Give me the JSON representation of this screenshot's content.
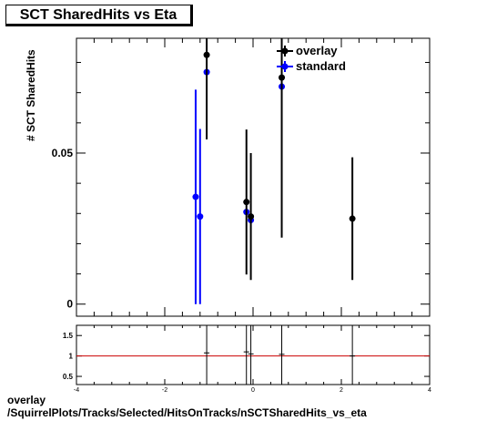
{
  "title": "SCT SharedHits vs Eta",
  "footer": {
    "line1": "overlay",
    "line2": "/SquirrelPlots/Tracks/Selected/HitsOnTracks/nSCTSharedHits_vs_eta"
  },
  "chart_data": [
    {
      "type": "scatter",
      "title": "SCT SharedHits vs Eta",
      "ylabel": "# SCT SharedHits",
      "xlim": [
        -4,
        4
      ],
      "ylim": [
        -0.004,
        0.088
      ],
      "xticks": [
        -4,
        -2,
        0,
        2,
        4
      ],
      "yticks": [
        0,
        0.05
      ],
      "ytick_labels": [
        "0",
        "0.05"
      ],
      "legend": {
        "placement": "top-right",
        "entries": [
          "overlay",
          "standard"
        ]
      },
      "grid": false,
      "series": [
        {
          "name": "overlay",
          "color": "#000000",
          "points": [
            {
              "x": -1.05,
              "y": 0.0825,
              "err": 0.028
            },
            {
              "x": -0.15,
              "y": 0.0338,
              "err": 0.024
            },
            {
              "x": -0.05,
              "y": 0.029,
              "err": 0.021
            },
            {
              "x": 0.65,
              "y": 0.075,
              "err": 0.053
            },
            {
              "x": 2.25,
              "y": 0.0283,
              "err": 0.0203
            }
          ]
        },
        {
          "name": "standard",
          "color": "#0000ff",
          "points": [
            {
              "x": -1.3,
              "y": 0.0355,
              "err": 0.0355
            },
            {
              "x": -1.2,
              "y": 0.029,
              "err": 0.029
            },
            {
              "x": -1.05,
              "y": 0.0768,
              "err": 0.0
            },
            {
              "x": -0.15,
              "y": 0.0305,
              "err": 0.0
            },
            {
              "x": -0.05,
              "y": 0.0278,
              "err": 0.0
            },
            {
              "x": 0.65,
              "y": 0.072,
              "err": 0.0
            }
          ]
        }
      ]
    },
    {
      "type": "scatter",
      "xlim": [
        -4,
        4
      ],
      "ylim": [
        0.3,
        1.75
      ],
      "xticks": [
        -4,
        -2,
        0,
        2,
        4
      ],
      "xtick_labels": [
        "-4",
        "-2",
        "0",
        "2",
        "4"
      ],
      "yticks": [
        0.5,
        1,
        1.5
      ],
      "ytick_labels": [
        "0.5",
        "1",
        "1.5"
      ],
      "reference_line": {
        "y": 1,
        "color": "#cc0000"
      },
      "ratio_points": [
        {
          "x": -1.05,
          "y": 1.075
        },
        {
          "x": -0.15,
          "y": 1.1
        },
        {
          "x": -0.05,
          "y": 1.05
        },
        {
          "x": 0.65,
          "y": 1.04
        },
        {
          "x": 2.25,
          "y": 1.0
        }
      ]
    }
  ]
}
